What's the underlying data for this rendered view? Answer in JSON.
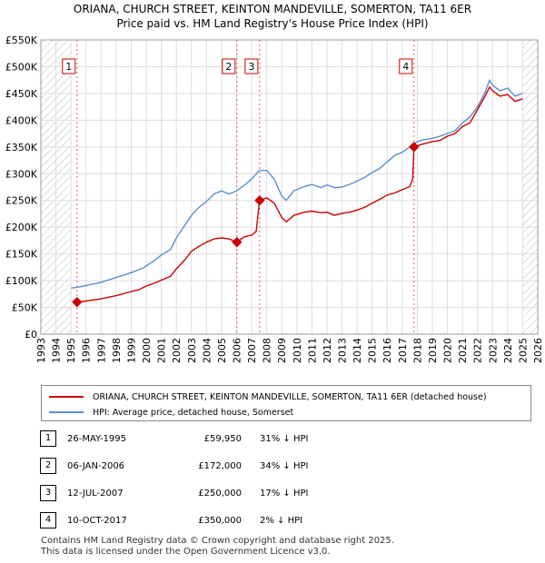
{
  "chart_data": {
    "type": "line",
    "title": "ORIANA, CHURCH STREET, KEINTON MANDEVILLE, SOMERTON, TA11 6ER",
    "subtitle": "Price paid vs. HM Land Registry's House Price Index (HPI)",
    "xlim": [
      1993,
      2026
    ],
    "ylim": [
      0,
      550000
    ],
    "x_ticks": [
      "1993",
      "1994",
      "1995",
      "1996",
      "1997",
      "1998",
      "1999",
      "2000",
      "2001",
      "2002",
      "2003",
      "2004",
      "2005",
      "2006",
      "2007",
      "2008",
      "2009",
      "2010",
      "2011",
      "2012",
      "2013",
      "2014",
      "2015",
      "2016",
      "2017",
      "2018",
      "2019",
      "2020",
      "2021",
      "2022",
      "2023",
      "2024",
      "2025",
      "2026"
    ],
    "y_ticks": [
      {
        "v": 0,
        "label": "£0"
      },
      {
        "v": 50000,
        "label": "£50K"
      },
      {
        "v": 100000,
        "label": "£100K"
      },
      {
        "v": 150000,
        "label": "£150K"
      },
      {
        "v": 200000,
        "label": "£200K"
      },
      {
        "v": 250000,
        "label": "£250K"
      },
      {
        "v": 300000,
        "label": "£300K"
      },
      {
        "v": 350000,
        "label": "£350K"
      },
      {
        "v": 400000,
        "label": "£400K"
      },
      {
        "v": 450000,
        "label": "£450K"
      },
      {
        "v": 500000,
        "label": "£500K"
      },
      {
        "v": 550000,
        "label": "£550K"
      }
    ],
    "hatch_before": 1995.0,
    "hatch_after": 2025.0,
    "series": [
      {
        "name": "ORIANA, CHURCH STREET, KEINTON MANDEVILLE, SOMERTON, TA11 6ER (detached house)",
        "color": "#cc0000",
        "x": [
          1995.4,
          1996,
          1997,
          1998,
          1998.9,
          1999.5,
          2000,
          2000.5,
          2001,
          2001.6,
          2002,
          2002.6,
          2003,
          2003.5,
          2004,
          2004.5,
          2005,
          2005.5,
          2006.02,
          2006.5,
          2007.0,
          2007.3,
          2007.53,
          2008.0,
          2008.5,
          2009.0,
          2009.3,
          2009.8,
          2010.5,
          2011,
          2011.6,
          2012,
          2012.5,
          2013,
          2013.5,
          2014,
          2014.5,
          2015,
          2015.5,
          2016,
          2016.5,
          2017,
          2017.5,
          2017.7,
          2017.78,
          2018.3,
          2019,
          2019.5,
          2020,
          2020.5,
          2021,
          2021.5,
          2022,
          2022.5,
          2022.8,
          2023,
          2023.5,
          2024,
          2024.5,
          2025.0
        ],
        "y": [
          59950,
          62000,
          66000,
          72000,
          79000,
          83000,
          90000,
          95000,
          101000,
          108000,
          122000,
          140000,
          155000,
          164000,
          172000,
          178000,
          180000,
          178000,
          172000,
          182000,
          185000,
          192000,
          250000,
          255000,
          245000,
          218000,
          210000,
          222000,
          228000,
          230000,
          227000,
          228000,
          222000,
          226000,
          228000,
          232000,
          237000,
          245000,
          252000,
          260000,
          264000,
          270000,
          276000,
          290000,
          350000,
          355000,
          360000,
          362000,
          370000,
          375000,
          388000,
          395000,
          420000,
          445000,
          462000,
          455000,
          445000,
          448000,
          435000,
          440000
        ]
      },
      {
        "name": "HPI: Average price, detached house, Somerset",
        "color": "#5b8fd0",
        "x": [
          1995.0,
          1995.5,
          1996,
          1997,
          1998,
          1999,
          1999.8,
          2000.5,
          2001,
          2001.6,
          2002,
          2002.6,
          2003,
          2003.5,
          2004,
          2004.5,
          2005,
          2005.5,
          2006,
          2006.5,
          2007,
          2007.5,
          2008,
          2008.5,
          2009,
          2009.3,
          2009.8,
          2010.5,
          2011,
          2011.6,
          2012,
          2012.5,
          2013,
          2013.5,
          2014,
          2014.5,
          2015,
          2015.5,
          2016,
          2016.5,
          2017,
          2017.5,
          2018,
          2018.5,
          2019,
          2019.5,
          2020,
          2020.5,
          2021,
          2021.5,
          2022,
          2022.5,
          2022.8,
          2023,
          2023.5,
          2024,
          2024.5,
          2025.0
        ],
        "y": [
          86000,
          88000,
          91000,
          97000,
          106000,
          115000,
          124000,
          137000,
          148000,
          158000,
          180000,
          205000,
          222000,
          237000,
          248000,
          262000,
          268000,
          262000,
          268000,
          278000,
          290000,
          306000,
          306000,
          290000,
          258000,
          250000,
          268000,
          276000,
          280000,
          274000,
          279000,
          274000,
          275000,
          280000,
          286000,
          293000,
          302000,
          310000,
          322000,
          334000,
          340000,
          350000,
          360000,
          364000,
          366000,
          370000,
          375000,
          380000,
          395000,
          406000,
          425000,
          452000,
          475000,
          465000,
          455000,
          460000,
          445000,
          450000
        ]
      }
    ],
    "sales": [
      {
        "n": "1",
        "x": 1995.4,
        "y": 59950
      },
      {
        "n": "2",
        "x": 2006.02,
        "y": 172000
      },
      {
        "n": "3",
        "x": 2007.53,
        "y": 250000
      },
      {
        "n": "4",
        "x": 2017.78,
        "y": 350000
      }
    ]
  },
  "legend": {
    "property": "ORIANA, CHURCH STREET, KEINTON MANDEVILLE, SOMERTON, TA11 6ER (detached house)",
    "hpi": "HPI: Average price, detached house, Somerset"
  },
  "sales_table": [
    {
      "n": "1",
      "date": "26-MAY-1995",
      "price": "£59,950",
      "hpi": "31% ↓ HPI"
    },
    {
      "n": "2",
      "date": "06-JAN-2006",
      "price": "£172,000",
      "hpi": "34% ↓ HPI"
    },
    {
      "n": "3",
      "date": "12-JUL-2007",
      "price": "£250,000",
      "hpi": "17% ↓ HPI"
    },
    {
      "n": "4",
      "date": "10-OCT-2017",
      "price": "£350,000",
      "hpi": "2% ↓ HPI"
    }
  ],
  "footer": {
    "line1": "Contains HM Land Registry data © Crown copyright and database right 2025.",
    "line2": "This data is licensed under the Open Government Licence v3.0."
  }
}
